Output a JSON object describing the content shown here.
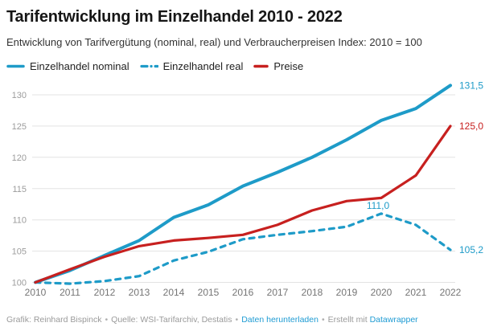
{
  "header": {
    "title": "Tarifentwicklung im Einzelhandel 2010 - 2022",
    "subtitle": "Entwicklung von Tarifvergütung (nominal, real) und Verbraucherpreisen Index: 2010 = 100"
  },
  "legend": {
    "items": [
      {
        "id": "nominal",
        "label": "Einzelhandel nominal",
        "color": "#1e9bc8",
        "dash": false
      },
      {
        "id": "real",
        "label": "Einzelhandel real",
        "color": "#1e9bc8",
        "dash": true
      },
      {
        "id": "preise",
        "label": "Preise",
        "color": "#c7201f",
        "dash": false
      }
    ]
  },
  "footer": {
    "credit": "Grafik: Reinhard Bispinck",
    "separator": "•",
    "source": "Quelle: WSI-Tarifarchiv, Destatis",
    "download_link": "Daten herunterladen",
    "made_with": "Erstellt mit",
    "tool_link": "Datawrapper"
  },
  "chart_data": {
    "type": "line",
    "title": "Tarifentwicklung im Einzelhandel 2010 - 2022",
    "subtitle": "Entwicklung von Tarifvergütung (nominal, real) und Verbraucherpreisen Index: 2010 = 100",
    "x": [
      2010,
      2011,
      2012,
      2013,
      2014,
      2015,
      2016,
      2017,
      2018,
      2019,
      2020,
      2021,
      2022
    ],
    "series": [
      {
        "id": "nominal",
        "name": "Einzelhandel nominal",
        "color": "#1e9bc8",
        "dash": false,
        "width": 4,
        "values": [
          100,
          101.9,
          104.3,
          106.7,
          110.4,
          112.4,
          115.4,
          117.6,
          120.0,
          122.8,
          125.9,
          127.8,
          131.5
        ],
        "end_label": "131,5"
      },
      {
        "id": "real",
        "name": "Einzelhandel real",
        "color": "#1e9bc8",
        "dash": true,
        "width": 3.2,
        "values": [
          100,
          99.8,
          100.2,
          101.0,
          103.5,
          104.9,
          106.9,
          107.6,
          108.2,
          108.9,
          111.0,
          109.2,
          105.2
        ],
        "end_label": "105,2"
      },
      {
        "id": "preise",
        "name": "Preise",
        "color": "#c7201f",
        "dash": false,
        "width": 3.2,
        "values": [
          100,
          102.1,
          104.1,
          105.8,
          106.7,
          107.1,
          107.6,
          109.2,
          111.5,
          113.0,
          113.5,
          117.1,
          125.0
        ],
        "end_label": "125,0"
      }
    ],
    "annotation": {
      "year": 2020,
      "value": 111.0,
      "text": "111,0",
      "series": "real"
    },
    "yticks": [
      100,
      105,
      110,
      115,
      120,
      125,
      130
    ],
    "ylim": [
      100,
      132
    ],
    "xlabel": "",
    "ylabel": "",
    "grid": true,
    "legend_position": "top",
    "colors": {
      "accent_blue": "#1e9bc8",
      "accent_red": "#c7201f",
      "grid": "#e3e3e3",
      "y_tick": "#9c9c9c",
      "x_tick": "#757575"
    }
  }
}
